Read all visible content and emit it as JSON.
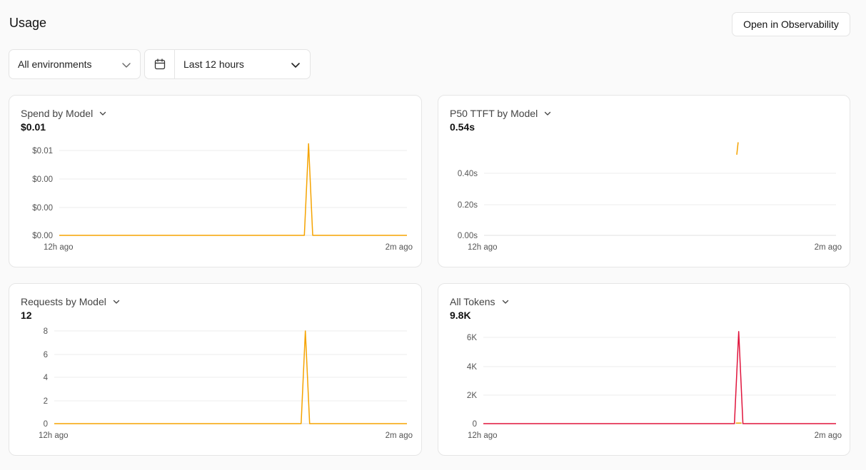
{
  "page": {
    "title": "Usage",
    "open_observability_label": "Open in Observability"
  },
  "filters": {
    "environment": {
      "selected": "All environments",
      "icon": "chevron-down-icon"
    },
    "time_range": {
      "selected": "Last 12 hours",
      "icon": "calendar-icon"
    }
  },
  "colors": {
    "primary_series": "#f5a300",
    "secondary_series": "#e0143c",
    "grid": "#ececec"
  },
  "cards": {
    "spend": {
      "title": "Spend by Model",
      "value": "$0.01",
      "chart_data": {
        "type": "line",
        "ytick_labels": [
          "$0.01",
          "$0.00",
          "$0.00",
          "$0.00"
        ],
        "xtick_labels": [
          "12h ago",
          "2m ago"
        ],
        "ylim": [
          0,
          0.01
        ],
        "series": [
          {
            "color": "#f5a300",
            "x": [
              0,
              0.705,
              0.717,
              0.729,
              1
            ],
            "y": [
              0,
              0,
              0.0108,
              0,
              0
            ]
          }
        ]
      }
    },
    "ttft": {
      "title": "P50 TTFT by Model",
      "value": "0.54s",
      "chart_data": {
        "type": "line",
        "ytick_labels": [
          "0.40s",
          "0.20s",
          "0.00s"
        ],
        "xtick_labels": [
          "12h ago",
          "2m ago"
        ],
        "ylim": [
          0,
          0.6
        ],
        "series": [
          {
            "color": "#f5a300",
            "x": [
              0.718,
              0.722
            ],
            "y": [
              0.52,
              0.6
            ]
          }
        ]
      }
    },
    "requests": {
      "title": "Requests by Model",
      "value": "12",
      "chart_data": {
        "type": "line",
        "ytick_labels": [
          "8",
          "6",
          "4",
          "2",
          "0"
        ],
        "xtick_labels": [
          "12h ago",
          "2m ago"
        ],
        "ylim": [
          0,
          8
        ],
        "series": [
          {
            "color": "#f5a300",
            "x": [
              0,
              0.7,
              0.712,
              0.724,
              1
            ],
            "y": [
              0,
              0,
              8,
              0,
              0
            ]
          }
        ]
      }
    },
    "tokens": {
      "title": "All Tokens",
      "value": "9.8K",
      "chart_data": {
        "type": "line",
        "ytick_labels": [
          "6K",
          "4K",
          "2K",
          "0"
        ],
        "xtick_labels": [
          "12h ago",
          "2m ago"
        ],
        "ylim": [
          0,
          6000
        ],
        "series": [
          {
            "color": "#e0143c",
            "x": [
              0,
              0.712,
              0.724,
              0.736,
              1
            ],
            "y": [
              0,
              0,
              6400,
              0,
              0
            ]
          },
          {
            "color": "#f5a300",
            "x": [
              0.716,
              0.732
            ],
            "y": [
              40,
              40
            ]
          }
        ]
      }
    }
  }
}
